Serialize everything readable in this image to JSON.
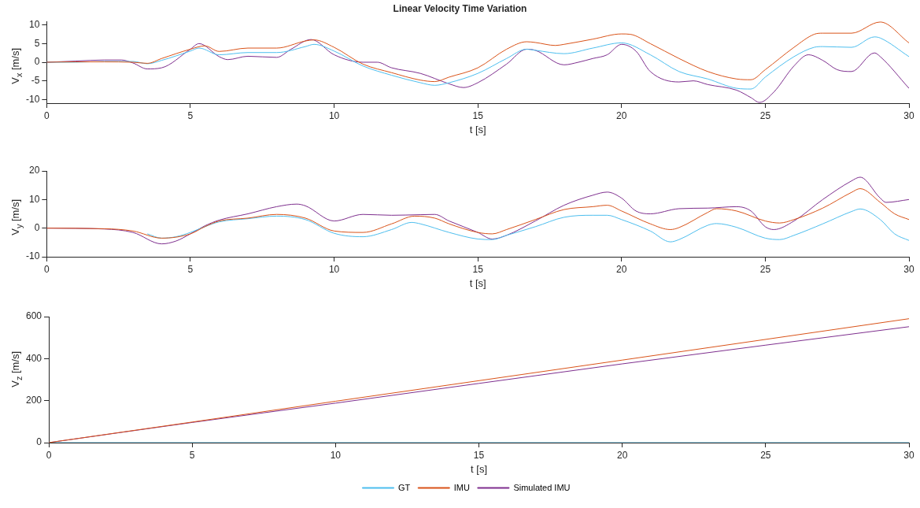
{
  "chart_data": [
    {
      "type": "line",
      "title": "Linear Velocity Time Variation",
      "xlabel": "t [s]",
      "ylabel": "V$_{x}$ [m/s]",
      "xlim": [
        0,
        30
      ],
      "xticks": [
        0,
        5,
        10,
        15,
        20,
        25,
        30
      ],
      "ylim": [
        -11,
        11
      ],
      "yticks": [
        -10,
        -5,
        0,
        5,
        10
      ],
      "grid": false,
      "legend": false,
      "series": [
        {
          "color": "#4dbeee",
          "x": [
            0,
            1,
            2,
            3,
            3.5,
            4,
            5,
            5.3,
            6,
            7,
            8,
            9,
            9.3,
            10,
            11,
            12,
            13,
            13.5,
            14,
            15,
            16,
            16.7,
            17,
            18,
            19,
            20,
            21,
            22,
            23,
            24,
            24.5,
            25,
            26,
            26.7,
            27,
            28,
            28.8,
            29,
            30
          ],
          "values": [
            0,
            0,
            0.2,
            0.2,
            -0.4,
            0.5,
            3,
            3.8,
            2,
            2.6,
            2.6,
            4.2,
            4.8,
            3,
            -1,
            -3.5,
            -5.5,
            -6.2,
            -5.5,
            -3,
            1,
            3.5,
            3.2,
            2.3,
            3.8,
            5.2,
            2,
            -2.5,
            -4.5,
            -7,
            -7.2,
            -4,
            1.5,
            4,
            4.2,
            4,
            6.8,
            6.5,
            1.5
          ]
        },
        {
          "color": "#d95319",
          "x": [
            0,
            1,
            2,
            3,
            3.5,
            4,
            5,
            5.5,
            6,
            7,
            8,
            9,
            9.3,
            10,
            11,
            12,
            13,
            13.5,
            14,
            15,
            16,
            16.7,
            17,
            17.7,
            18,
            19,
            20,
            20.3,
            21,
            22,
            23,
            24,
            24.5,
            25,
            26,
            26.7,
            27,
            28,
            29,
            30
          ],
          "values": [
            0,
            0.1,
            0.1,
            0,
            -0.3,
            1,
            3.5,
            4.4,
            2.9,
            3.8,
            3.8,
            5.7,
            6,
            4,
            -0.5,
            -2.8,
            -4.8,
            -5.2,
            -4,
            -1.5,
            3.5,
            5.5,
            5.3,
            4.5,
            4.8,
            6.2,
            7.6,
            7.5,
            5,
            1,
            -2.5,
            -4.5,
            -4.7,
            -2,
            4,
            7.5,
            7.8,
            7.8,
            10.8,
            5.2
          ]
        },
        {
          "color": "#7e2f8e",
          "x": [
            0,
            1,
            2,
            2.6,
            3,
            3.5,
            4,
            5,
            5.3,
            6,
            6.3,
            7,
            8,
            8.5,
            9.2,
            10,
            11,
            11.5,
            12,
            13,
            14,
            14.5,
            15,
            16,
            16.7,
            17,
            18,
            18.5,
            19,
            19.5,
            20,
            20.5,
            21,
            22,
            22.5,
            23,
            24,
            24.5,
            24.8,
            25.3,
            26,
            26.5,
            27,
            27.5,
            28,
            28.8,
            29,
            30
          ],
          "values": [
            0,
            0.3,
            0.6,
            0.6,
            -0.2,
            -1.8,
            -1.5,
            3.5,
            5,
            1.5,
            0.7,
            1.6,
            1.3,
            3.5,
            6.1,
            2,
            0,
            0,
            -1.5,
            -3,
            -5.8,
            -6.8,
            -5.5,
            -0.5,
            3.5,
            3.2,
            -0.7,
            0,
            1,
            2,
            4.8,
            3,
            -2.5,
            -5.3,
            -5,
            -6,
            -7.5,
            -9.5,
            -10.8,
            -8,
            -1,
            2,
            0.5,
            -2,
            -2.5,
            2.5,
            1.5,
            -7
          ]
        }
      ]
    },
    {
      "type": "line",
      "xlabel": "t [s]",
      "ylabel": "V$_{y}$ [m/s]",
      "xlim": [
        0,
        30
      ],
      "xticks": [
        0,
        5,
        10,
        15,
        20,
        25,
        30
      ],
      "ylim": [
        -10,
        20
      ],
      "yticks": [
        -10,
        0,
        10,
        20
      ],
      "grid": false,
      "legend": false,
      "series": [
        {
          "color": "#4dbeee",
          "x": [
            3.5,
            4,
            4.5,
            5,
            5.5,
            6,
            7,
            8,
            9,
            10,
            11,
            12,
            12.7,
            13,
            14,
            15,
            15.5,
            16,
            17,
            18,
            19,
            19.5,
            20,
            21,
            21.7,
            22,
            23,
            23.3,
            24,
            25,
            25.5,
            26,
            27,
            28,
            28.3,
            29,
            29.5,
            30
          ],
          "values": [
            -2,
            -3.5,
            -3,
            -1.5,
            0.5,
            2.2,
            3.3,
            4.2,
            3,
            -1.8,
            -3,
            -0.5,
            2,
            1.5,
            -1.5,
            -3.8,
            -4,
            -2.5,
            0.5,
            3.8,
            4.5,
            4.5,
            3,
            -1,
            -4.8,
            -4,
            1,
            1.6,
            0.3,
            -3.5,
            -4,
            -2.5,
            1.5,
            5.8,
            6.7,
            3,
            -2,
            -4.3
          ]
        },
        {
          "color": "#d95319",
          "x": [
            0,
            2,
            3,
            4,
            5,
            5.5,
            6,
            7,
            8,
            9,
            10,
            11,
            12,
            12.8,
            13.5,
            14,
            15,
            15.5,
            16,
            17,
            18,
            19,
            19.5,
            20,
            21,
            21.7,
            22,
            23,
            23.3,
            24,
            25,
            25.5,
            26,
            27,
            28,
            28.3,
            29,
            29.5,
            30
          ],
          "values": [
            0,
            -0.2,
            -1,
            -3.5,
            -2,
            0.5,
            2.5,
            3.5,
            4.8,
            3.5,
            -1,
            -1.5,
            1.5,
            4.2,
            3.5,
            1.5,
            -1.5,
            -2,
            -0.5,
            3,
            6.5,
            7.5,
            8,
            6,
            1.5,
            -0.5,
            0.2,
            5.5,
            6.8,
            6,
            2.5,
            1.8,
            3,
            7,
            12.5,
            13.8,
            9,
            5,
            3
          ]
        },
        {
          "color": "#7e2f8e",
          "x": [
            0,
            2,
            3,
            4,
            4.5,
            5,
            5.5,
            6,
            7,
            8,
            8.7,
            9,
            10,
            11,
            12,
            13,
            13.5,
            14,
            15,
            15.5,
            16,
            17,
            18,
            19,
            19.5,
            20,
            20.5,
            21,
            22,
            23,
            24,
            24.5,
            25,
            25.3,
            26,
            27,
            28,
            28.3,
            29,
            29.2,
            30
          ],
          "values": [
            0,
            -0.3,
            -1.5,
            -5.5,
            -4.5,
            -2,
            0.8,
            2.8,
            5,
            7.5,
            8.4,
            7.8,
            2.5,
            4.8,
            4.5,
            4.7,
            4.8,
            2.5,
            -1.5,
            -3.8,
            -2.5,
            2.5,
            8,
            11.5,
            12.6,
            10.5,
            6,
            5,
            6.8,
            7,
            7.5,
            6,
            0.5,
            -0.5,
            2.5,
            10,
            16.5,
            17.8,
            10.5,
            9,
            10
          ]
        }
      ]
    },
    {
      "type": "line",
      "xlabel": "t [s]",
      "ylabel": "V$_{z}$ [m/s]",
      "xlim": [
        0,
        30
      ],
      "xticks": [
        0,
        5,
        10,
        15,
        20,
        25,
        30
      ],
      "ylim": [
        0,
        600
      ],
      "yticks": [
        0,
        200,
        400,
        600
      ],
      "grid": false,
      "legend": "bottom",
      "series": [
        {
          "name": "GT",
          "color": "#4dbeee",
          "x": [
            0,
            10,
            20,
            30
          ],
          "values": [
            0,
            0,
            0,
            0
          ]
        },
        {
          "name": "IMU",
          "color": "#d95319",
          "x": [
            0,
            5,
            10,
            20,
            30
          ],
          "values": [
            0,
            98,
            197,
            393,
            590
          ]
        },
        {
          "name": "Simulated IMU",
          "color": "#7e2f8e",
          "x": [
            0,
            5,
            10,
            20,
            30
          ],
          "values": [
            0,
            96,
            188,
            375,
            552
          ]
        }
      ]
    }
  ]
}
